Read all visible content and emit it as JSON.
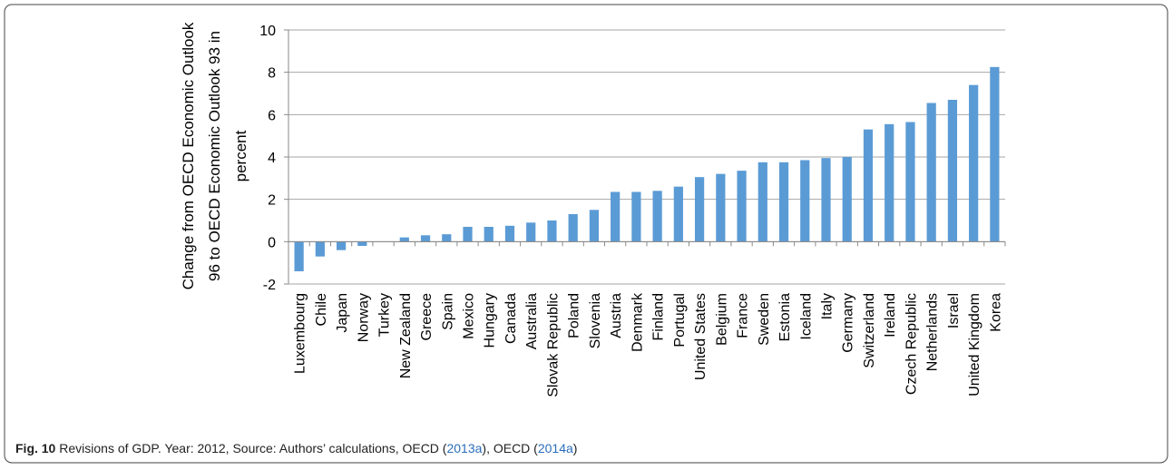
{
  "chart_data": {
    "type": "bar",
    "ylabel": [
      "Change from OECD Economic Outlook",
      "96 to OECD Economic Outlook 93 in",
      "percent"
    ],
    "categories": [
      "Luxembourg",
      "Chile",
      "Japan",
      "Norway",
      "Turkey",
      "New Zealand",
      "Greece",
      "Spain",
      "Mexico",
      "Hungary",
      "Canada",
      "Australia",
      "Slovak Republic",
      "Poland",
      "Slovenia",
      "Austria",
      "Denmark",
      "Finland",
      "Portugal",
      "United States",
      "Belgium",
      "France",
      "Sweden",
      "Estonia",
      "Iceland",
      "Italy",
      "Germany",
      "Switzerland",
      "Ireland",
      "Czech Republic",
      "Netherlands",
      "Israel",
      "United Kingdom",
      "Korea"
    ],
    "values": [
      -1.4,
      -0.7,
      -0.4,
      -0.2,
      0,
      0.2,
      0.3,
      0.35,
      0.7,
      0.7,
      0.75,
      0.9,
      1.0,
      1.3,
      1.5,
      2.35,
      2.35,
      2.4,
      2.6,
      3.05,
      3.2,
      3.35,
      3.75,
      3.75,
      3.85,
      3.95,
      4.0,
      5.3,
      5.55,
      5.65,
      6.55,
      6.7,
      7.4,
      8.25
    ],
    "color": "#5b9bd5",
    "ylim": [
      -2,
      10
    ],
    "yticks": [
      -2,
      0,
      2,
      4,
      6,
      8,
      10
    ],
    "grid": true
  },
  "caption": {
    "label": "Fig. 10",
    "parts": [
      "Revisions of GDP. Year: 2012, Source: Authors’ calculations, OECD (",
      "2013a",
      "), OECD (",
      "2014a",
      ")"
    ]
  }
}
